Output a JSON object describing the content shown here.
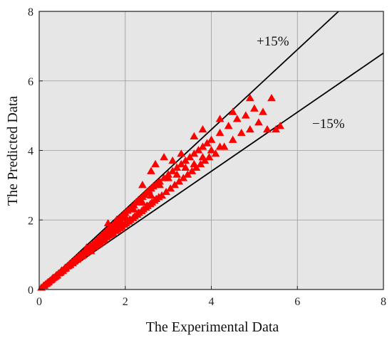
{
  "chart_data": {
    "type": "scatter",
    "xlabel": "The Experimental Data",
    "ylabel": "The Predicted Data",
    "xlim": [
      0,
      8
    ],
    "ylim": [
      0,
      8
    ],
    "xticks": [
      "0",
      "2",
      "4",
      "6",
      "8"
    ],
    "yticks": [
      "0",
      "2",
      "4",
      "6",
      "8"
    ],
    "grid": true,
    "plot_background": "#e6e6e6",
    "marker_color": "#ff0000",
    "marker": "triangle",
    "annotations": [
      "+15%",
      "−15%"
    ],
    "reference_lines": [
      {
        "label": "+15%",
        "slope": 1.15
      },
      {
        "label": "−15%",
        "slope": 0.85
      }
    ],
    "series": [
      {
        "points": [
          [
            0.05,
            0.05
          ],
          [
            0.1,
            0.1
          ],
          [
            0.12,
            0.11
          ],
          [
            0.15,
            0.15
          ],
          [
            0.18,
            0.17
          ],
          [
            0.2,
            0.2
          ],
          [
            0.22,
            0.21
          ],
          [
            0.25,
            0.25
          ],
          [
            0.28,
            0.27
          ],
          [
            0.3,
            0.3
          ],
          [
            0.32,
            0.33
          ],
          [
            0.35,
            0.34
          ],
          [
            0.38,
            0.37
          ],
          [
            0.4,
            0.41
          ],
          [
            0.42,
            0.4
          ],
          [
            0.45,
            0.46
          ],
          [
            0.48,
            0.47
          ],
          [
            0.5,
            0.5
          ],
          [
            0.52,
            0.54
          ],
          [
            0.55,
            0.53
          ],
          [
            0.58,
            0.58
          ],
          [
            0.6,
            0.62
          ],
          [
            0.62,
            0.6
          ],
          [
            0.65,
            0.66
          ],
          [
            0.68,
            0.67
          ],
          [
            0.7,
            0.72
          ],
          [
            0.72,
            0.7
          ],
          [
            0.75,
            0.77
          ],
          [
            0.78,
            0.75
          ],
          [
            0.8,
            0.82
          ],
          [
            0.82,
            0.8
          ],
          [
            0.85,
            0.88
          ],
          [
            0.88,
            0.85
          ],
          [
            0.9,
            0.93
          ],
          [
            0.92,
            0.9
          ],
          [
            0.95,
            0.98
          ],
          [
            0.98,
            0.95
          ],
          [
            1.0,
            1.03
          ],
          [
            1.02,
            0.98
          ],
          [
            1.05,
            1.08
          ],
          [
            1.08,
            1.04
          ],
          [
            1.1,
            1.14
          ],
          [
            1.12,
            1.08
          ],
          [
            1.15,
            1.2
          ],
          [
            1.18,
            1.12
          ],
          [
            1.2,
            1.26
          ],
          [
            1.22,
            1.18
          ],
          [
            1.25,
            1.3
          ],
          [
            1.28,
            1.22
          ],
          [
            1.3,
            1.36
          ],
          [
            1.32,
            1.27
          ],
          [
            1.35,
            1.42
          ],
          [
            1.38,
            1.3
          ],
          [
            1.4,
            1.48
          ],
          [
            1.42,
            1.35
          ],
          [
            1.45,
            1.54
          ],
          [
            1.48,
            1.4
          ],
          [
            1.5,
            1.6
          ],
          [
            1.52,
            1.44
          ],
          [
            1.55,
            1.66
          ],
          [
            1.58,
            1.5
          ],
          [
            1.6,
            1.72
          ],
          [
            1.62,
            1.55
          ],
          [
            1.65,
            1.78
          ],
          [
            1.68,
            1.58
          ],
          [
            1.7,
            1.84
          ],
          [
            1.72,
            1.62
          ],
          [
            1.75,
            1.9
          ],
          [
            1.78,
            1.68
          ],
          [
            1.8,
            1.96
          ],
          [
            1.82,
            1.72
          ],
          [
            1.85,
            2.02
          ],
          [
            1.88,
            1.76
          ],
          [
            1.9,
            2.08
          ],
          [
            1.92,
            1.8
          ],
          [
            1.95,
            2.14
          ],
          [
            1.98,
            1.86
          ],
          [
            2.0,
            2.2
          ],
          [
            2.02,
            1.9
          ],
          [
            2.05,
            2.26
          ],
          [
            2.08,
            1.95
          ],
          [
            2.1,
            2.3
          ],
          [
            2.12,
            2.0
          ],
          [
            2.15,
            2.36
          ],
          [
            2.18,
            2.05
          ],
          [
            2.2,
            2.42
          ],
          [
            2.22,
            2.1
          ],
          [
            2.25,
            2.5
          ],
          [
            2.28,
            2.15
          ],
          [
            2.3,
            2.56
          ],
          [
            2.32,
            2.2
          ],
          [
            2.35,
            2.6
          ],
          [
            2.38,
            2.25
          ],
          [
            2.4,
            2.66
          ],
          [
            2.42,
            2.3
          ],
          [
            2.45,
            2.72
          ],
          [
            2.48,
            2.35
          ],
          [
            2.5,
            2.78
          ],
          [
            2.52,
            2.4
          ],
          [
            2.55,
            2.84
          ],
          [
            2.58,
            2.45
          ],
          [
            2.6,
            2.9
          ],
          [
            2.62,
            2.5
          ],
          [
            2.65,
            2.96
          ],
          [
            2.68,
            2.55
          ],
          [
            2.7,
            3.0
          ],
          [
            2.72,
            2.6
          ],
          [
            2.75,
            3.05
          ],
          [
            2.78,
            2.65
          ],
          [
            2.8,
            3.1
          ],
          [
            2.85,
            2.7
          ],
          [
            2.9,
            3.2
          ],
          [
            2.95,
            2.8
          ],
          [
            3.0,
            3.3
          ],
          [
            3.05,
            2.9
          ],
          [
            3.1,
            3.4
          ],
          [
            3.15,
            3.0
          ],
          [
            3.2,
            3.5
          ],
          [
            3.25,
            3.1
          ],
          [
            3.3,
            3.6
          ],
          [
            3.35,
            3.2
          ],
          [
            3.4,
            3.7
          ],
          [
            3.45,
            3.3
          ],
          [
            3.5,
            3.8
          ],
          [
            3.55,
            3.4
          ],
          [
            3.6,
            3.9
          ],
          [
            3.65,
            3.5
          ],
          [
            3.7,
            4.0
          ],
          [
            3.75,
            3.6
          ],
          [
            3.8,
            4.1
          ],
          [
            3.85,
            3.7
          ],
          [
            3.9,
            4.2
          ],
          [
            3.95,
            3.8
          ],
          [
            4.0,
            4.3
          ],
          [
            4.1,
            3.9
          ],
          [
            4.2,
            4.5
          ],
          [
            4.3,
            4.1
          ],
          [
            4.4,
            4.7
          ],
          [
            4.5,
            4.3
          ],
          [
            4.6,
            4.9
          ],
          [
            4.7,
            4.5
          ],
          [
            4.8,
            5.0
          ],
          [
            4.9,
            4.6
          ],
          [
            5.0,
            5.2
          ],
          [
            5.1,
            4.8
          ],
          [
            5.2,
            5.1
          ],
          [
            5.3,
            4.6
          ],
          [
            5.4,
            5.5
          ],
          [
            5.5,
            4.6
          ],
          [
            5.6,
            4.7
          ],
          [
            2.6,
            3.4
          ],
          [
            2.7,
            3.6
          ],
          [
            2.9,
            3.8
          ],
          [
            3.1,
            3.7
          ],
          [
            3.3,
            3.9
          ],
          [
            3.6,
            4.4
          ],
          [
            3.8,
            4.6
          ],
          [
            4.2,
            4.9
          ],
          [
            4.5,
            5.1
          ],
          [
            4.9,
            5.5
          ],
          [
            2.4,
            3.0
          ],
          [
            2.6,
            2.7
          ],
          [
            2.8,
            3.0
          ],
          [
            3.0,
            3.2
          ],
          [
            3.2,
            3.3
          ],
          [
            3.4,
            3.5
          ],
          [
            3.6,
            3.6
          ],
          [
            3.8,
            3.8
          ],
          [
            4.0,
            4.0
          ],
          [
            4.2,
            4.1
          ],
          [
            1.6,
            1.9
          ],
          [
            1.7,
            1.7
          ],
          [
            1.8,
            2.0
          ],
          [
            1.9,
            1.9
          ],
          [
            2.0,
            2.1
          ],
          [
            2.1,
            2.0
          ],
          [
            2.2,
            2.3
          ],
          [
            2.3,
            2.2
          ],
          [
            2.4,
            2.5
          ],
          [
            2.5,
            2.4
          ],
          [
            1.1,
            1.2
          ],
          [
            1.2,
            1.1
          ],
          [
            1.3,
            1.3
          ],
          [
            1.4,
            1.35
          ],
          [
            1.5,
            1.5
          ],
          [
            1.6,
            1.6
          ],
          [
            1.7,
            1.75
          ],
          [
            1.8,
            1.8
          ],
          [
            1.9,
            1.95
          ],
          [
            2.0,
            2.05
          ]
        ]
      }
    ]
  }
}
